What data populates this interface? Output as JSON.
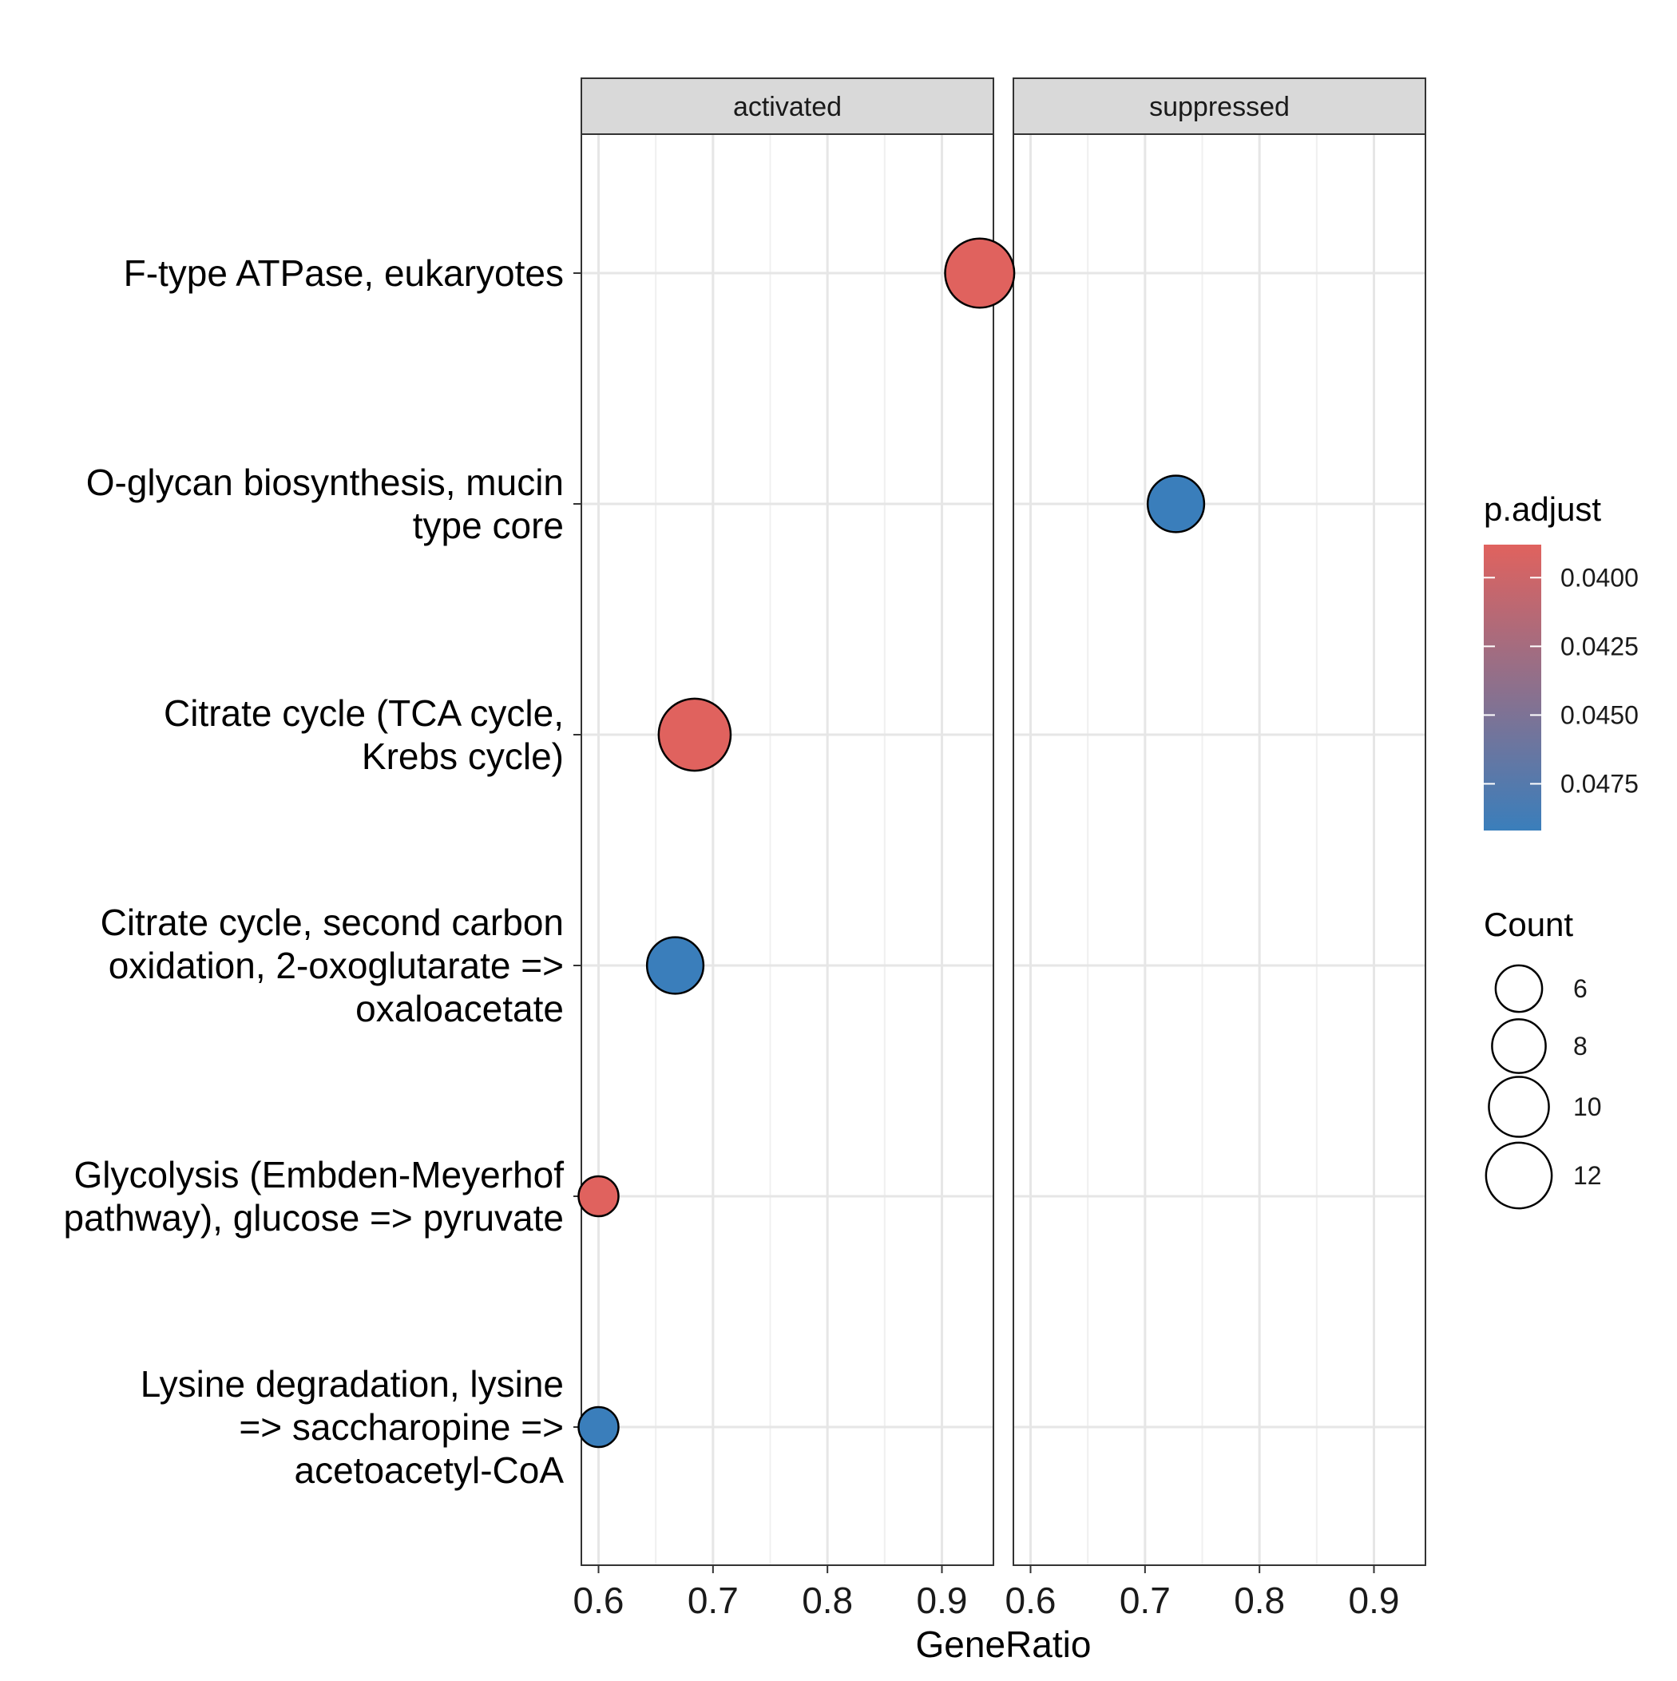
{
  "chart_data": {
    "type": "scatter",
    "xlabel": "GeneRatio",
    "xlim": [
      0.585,
      0.945
    ],
    "x_ticks": [
      0.6,
      0.7,
      0.8,
      0.9
    ],
    "x_tick_labels": [
      "0.6",
      "0.7",
      "0.8",
      "0.9"
    ],
    "grid": true,
    "facets": [
      "activated",
      "suppressed"
    ],
    "categories": [
      [
        "F-type ATPase, eukaryotes"
      ],
      [
        "O-glycan biosynthesis, mucin",
        "type core"
      ],
      [
        "Citrate cycle (TCA cycle,",
        "Krebs cycle)"
      ],
      [
        "Citrate cycle, second carbon",
        "oxidation, 2-oxoglutarate =>",
        "oxaloacetate"
      ],
      [
        "Glycolysis (Embden-Meyerhof",
        "pathway), glucose => pyruvate"
      ],
      [
        "Lysine degradation, lysine",
        "=> saccharopine =>",
        "acetoacetyl-CoA"
      ]
    ],
    "points": [
      {
        "facet": "activated",
        "category_index": 0,
        "x": 0.933,
        "count": 12,
        "p_adjust": 0.0388
      },
      {
        "facet": "suppressed",
        "category_index": 1,
        "x": 0.727,
        "count": 8,
        "p_adjust": 0.0492
      },
      {
        "facet": "activated",
        "category_index": 2,
        "x": 0.684,
        "count": 13,
        "p_adjust": 0.0388
      },
      {
        "facet": "activated",
        "category_index": 3,
        "x": 0.667,
        "count": 8,
        "p_adjust": 0.0492
      },
      {
        "facet": "activated",
        "category_index": 4,
        "x": 0.6,
        "count": 4,
        "p_adjust": 0.0388
      },
      {
        "facet": "activated",
        "category_index": 5,
        "x": 0.6,
        "count": 4,
        "p_adjust": 0.0492
      }
    ],
    "legend_color": {
      "title": "p.adjust",
      "range": [
        0.0388,
        0.0492
      ],
      "ticks": [
        0.04,
        0.0425,
        0.045,
        0.0475
      ],
      "tick_labels": [
        "0.0400",
        "0.0425",
        "0.0450",
        "0.0475"
      ],
      "low_color": "#e0625e",
      "high_color": "#3a7ebb"
    },
    "legend_size": {
      "title": "Count",
      "values": [
        6,
        8,
        10,
        12
      ],
      "labels": [
        "6",
        "8",
        "10",
        "12"
      ]
    },
    "legend_placement": "right"
  }
}
